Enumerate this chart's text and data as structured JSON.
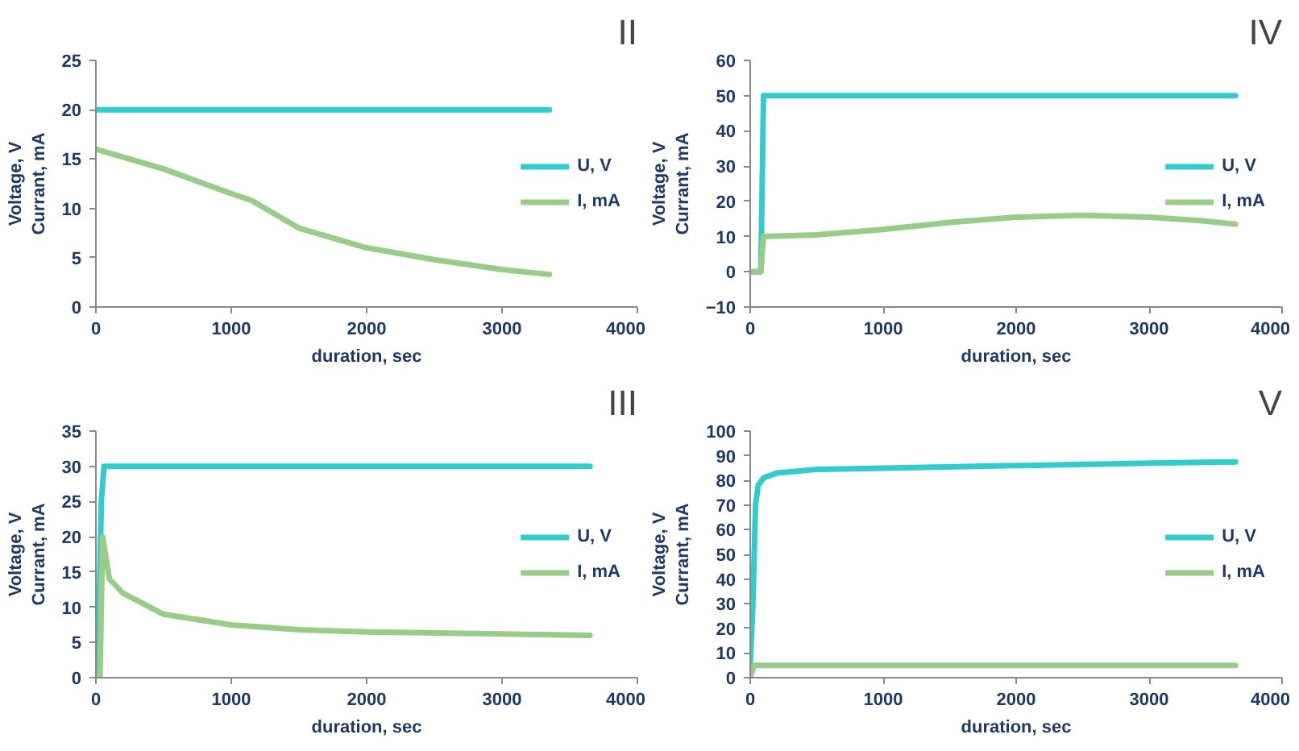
{
  "chart_data": [
    {
      "type": "line",
      "title": "II",
      "xlabel": "duration, sec",
      "ylabel": "Voltage, V\nCurrant, mA",
      "xlim": [
        0,
        4000
      ],
      "xticks": [
        0,
        1000,
        2000,
        3000,
        4000
      ],
      "ylim": [
        0,
        25
      ],
      "yticks": [
        0,
        5,
        10,
        15,
        20,
        25
      ],
      "grid": false,
      "legend": "right",
      "series": [
        {
          "name": "U, V",
          "color": "#33cccc",
          "x": [
            0,
            3350
          ],
          "values": [
            20,
            20
          ]
        },
        {
          "name": "I, mA",
          "color": "#99cc88",
          "x": [
            0,
            500,
            1000,
            1150,
            1500,
            2000,
            2500,
            3000,
            3350
          ],
          "values": [
            16,
            14,
            11.5,
            10.8,
            8,
            6,
            4.8,
            3.8,
            3.3
          ]
        }
      ]
    },
    {
      "type": "line",
      "title": "IV",
      "xlabel": "duration, sec",
      "ylabel": "Voltage, V\nCurrant, mA",
      "xlim": [
        0,
        4000
      ],
      "xticks": [
        0,
        1000,
        2000,
        3000,
        4000
      ],
      "ylim": [
        -10,
        60
      ],
      "yticks": [
        -10,
        0,
        10,
        20,
        30,
        40,
        50,
        60
      ],
      "grid": false,
      "legend": "right",
      "series": [
        {
          "name": "U, V",
          "color": "#33cccc",
          "x": [
            0,
            80,
            100,
            3650
          ],
          "values": [
            0,
            0,
            50,
            50
          ]
        },
        {
          "name": "I, mA",
          "color": "#99cc88",
          "x": [
            0,
            80,
            100,
            500,
            1000,
            1500,
            2000,
            2500,
            3000,
            3400,
            3650
          ],
          "values": [
            0,
            0,
            10,
            10.5,
            12,
            14,
            15.5,
            16,
            15.5,
            14.5,
            13.5
          ]
        }
      ]
    },
    {
      "type": "line",
      "title": "III",
      "xlabel": "duration, sec",
      "ylabel": "Voltage, V\nCurrant, mA",
      "xlim": [
        0,
        4000
      ],
      "xticks": [
        0,
        1000,
        2000,
        3000,
        4000
      ],
      "ylim": [
        0,
        35
      ],
      "yticks": [
        0,
        5,
        10,
        15,
        20,
        25,
        30,
        35
      ],
      "grid": false,
      "legend": "right",
      "series": [
        {
          "name": "U, V",
          "color": "#33cccc",
          "x": [
            0,
            20,
            40,
            60,
            3650
          ],
          "values": [
            0,
            6,
            25,
            30,
            30
          ]
        },
        {
          "name": "I, mA",
          "color": "#99cc88",
          "x": [
            0,
            30,
            50,
            100,
            200,
            500,
            1000,
            1500,
            2000,
            3000,
            3650
          ],
          "values": [
            0,
            0,
            20,
            14,
            12,
            9,
            7.5,
            6.8,
            6.5,
            6.2,
            6
          ]
        }
      ]
    },
    {
      "type": "line",
      "title": "V",
      "xlabel": "duration, sec",
      "ylabel": "Voltage, V\nCurrant, mA",
      "xlim": [
        0,
        4000
      ],
      "xticks": [
        0,
        1000,
        2000,
        3000,
        4000
      ],
      "ylim": [
        0,
        100
      ],
      "yticks": [
        0,
        10,
        20,
        30,
        40,
        50,
        60,
        70,
        80,
        90,
        100
      ],
      "grid": false,
      "legend": "right",
      "series": [
        {
          "name": "U, V",
          "color": "#33cccc",
          "x": [
            0,
            20,
            40,
            60,
            100,
            200,
            500,
            1000,
            2000,
            3000,
            3650
          ],
          "values": [
            5,
            30,
            70,
            78,
            81,
            83,
            84.5,
            85,
            86,
            87,
            87.5
          ]
        },
        {
          "name": "I, mA",
          "color": "#99cc88",
          "x": [
            0,
            30,
            3650
          ],
          "values": [
            0,
            5,
            5
          ]
        }
      ]
    }
  ]
}
